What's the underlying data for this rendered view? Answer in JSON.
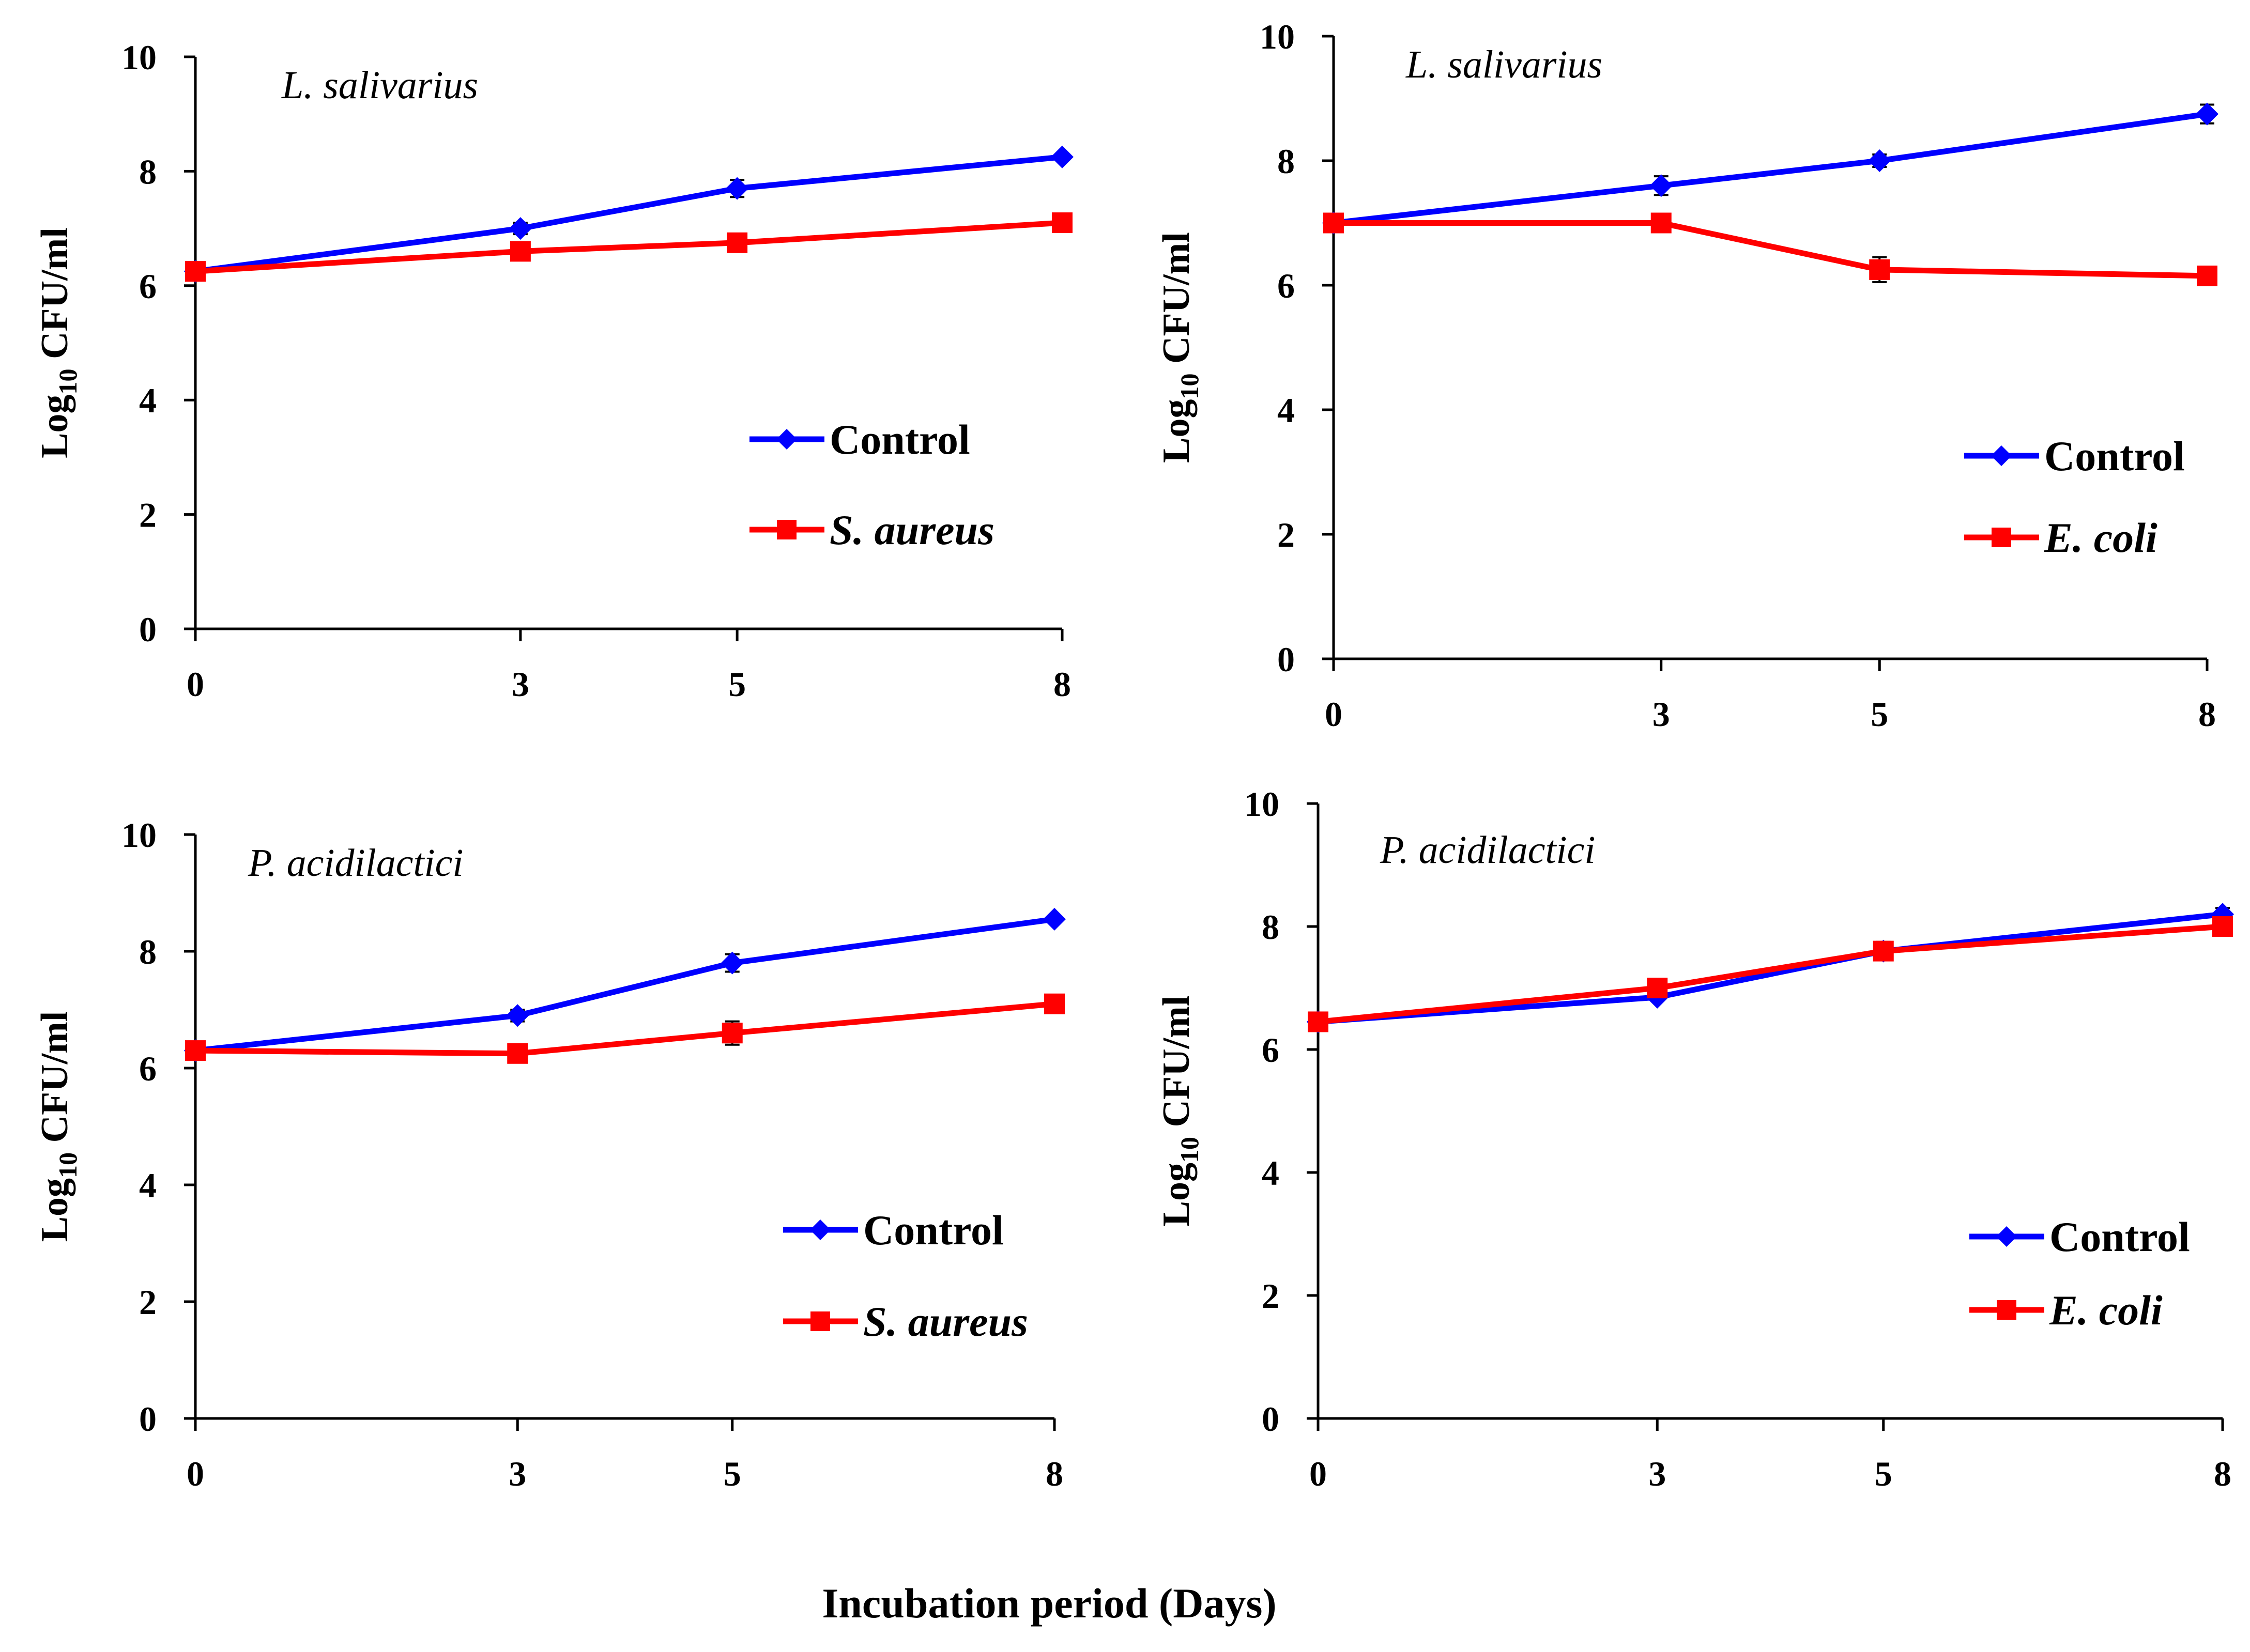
{
  "figure": {
    "xlabel": "Incubation period (Days)",
    "colors": {
      "control": "#0000ff",
      "treatment": "#ff0000",
      "axis": "#000000"
    }
  },
  "chart_data": [
    {
      "type": "line",
      "title": "L. salivarius",
      "ylabel_main": "Log",
      "ylabel_sub": "10",
      "ylabel_rest": " CFU/ml",
      "categories": [
        "0",
        "3",
        "5",
        "8"
      ],
      "ylim": [
        0,
        10
      ],
      "yticks": [
        0,
        2,
        4,
        6,
        8,
        10
      ],
      "legend": "right-middle",
      "series": [
        {
          "name": "Control",
          "italic": false,
          "color": "#0000ff",
          "marker": "diamond",
          "values": [
            6.25,
            7.0,
            7.7,
            8.25
          ],
          "errors": [
            0.05,
            0.1,
            0.15,
            0.05
          ]
        },
        {
          "name": "S. aureus",
          "italic": true,
          "color": "#ff0000",
          "marker": "square",
          "values": [
            6.25,
            6.6,
            6.75,
            7.1
          ],
          "errors": [
            0.05,
            0.15,
            0.15,
            0.05
          ]
        }
      ]
    },
    {
      "type": "line",
      "title": "L. salivarius",
      "ylabel_main": "Log",
      "ylabel_sub": "10",
      "ylabel_rest": " CFU/ml",
      "categories": [
        "0",
        "3",
        "5",
        "8"
      ],
      "ylim": [
        0,
        10
      ],
      "yticks": [
        0,
        2,
        4,
        6,
        8,
        10
      ],
      "legend": "right-middle",
      "series": [
        {
          "name": "Control",
          "italic": false,
          "color": "#0000ff",
          "marker": "diamond",
          "values": [
            7.0,
            7.6,
            8.0,
            8.75
          ],
          "errors": [
            0.05,
            0.15,
            0.1,
            0.15
          ]
        },
        {
          "name": "E. coli",
          "italic": true,
          "color": "#ff0000",
          "marker": "square",
          "values": [
            7.0,
            7.0,
            6.25,
            6.15
          ],
          "errors": [
            0.05,
            0.05,
            0.2,
            0.05
          ]
        }
      ]
    },
    {
      "type": "line",
      "title": "P. acidilactici",
      "ylabel_main": "Log",
      "ylabel_sub": "10",
      "ylabel_rest": " CFU/ml",
      "categories": [
        "0",
        "3",
        "5",
        "8"
      ],
      "ylim": [
        0,
        10
      ],
      "yticks": [
        0,
        2,
        4,
        6,
        8,
        10
      ],
      "legend": "right-lower",
      "series": [
        {
          "name": "Control",
          "italic": false,
          "color": "#0000ff",
          "marker": "diamond",
          "values": [
            6.3,
            6.9,
            7.8,
            8.55
          ],
          "errors": [
            0.05,
            0.1,
            0.15,
            0.05
          ]
        },
        {
          "name": "S. aureus",
          "italic": true,
          "color": "#ff0000",
          "marker": "square",
          "values": [
            6.3,
            6.25,
            6.6,
            7.1
          ],
          "errors": [
            0.05,
            0.05,
            0.2,
            0.1
          ]
        }
      ]
    },
    {
      "type": "line",
      "title": "P. acidilactici",
      "ylabel_main": "Log",
      "ylabel_sub": "10",
      "ylabel_rest": " CFU/ml",
      "categories": [
        "0",
        "3",
        "5",
        "8"
      ],
      "ylim": [
        0,
        10
      ],
      "yticks": [
        0,
        2,
        4,
        6,
        8,
        10
      ],
      "legend": "right-lower",
      "series": [
        {
          "name": "Control",
          "italic": false,
          "color": "#0000ff",
          "marker": "diamond",
          "values": [
            6.45,
            6.85,
            7.6,
            8.2
          ],
          "errors": [
            0.05,
            0.05,
            0.15,
            0.1
          ]
        },
        {
          "name": "E. coli",
          "italic": true,
          "color": "#ff0000",
          "marker": "square",
          "values": [
            6.45,
            7.0,
            7.6,
            8.0
          ],
          "errors": [
            0.05,
            0.05,
            0.1,
            0.05
          ]
        }
      ]
    }
  ]
}
